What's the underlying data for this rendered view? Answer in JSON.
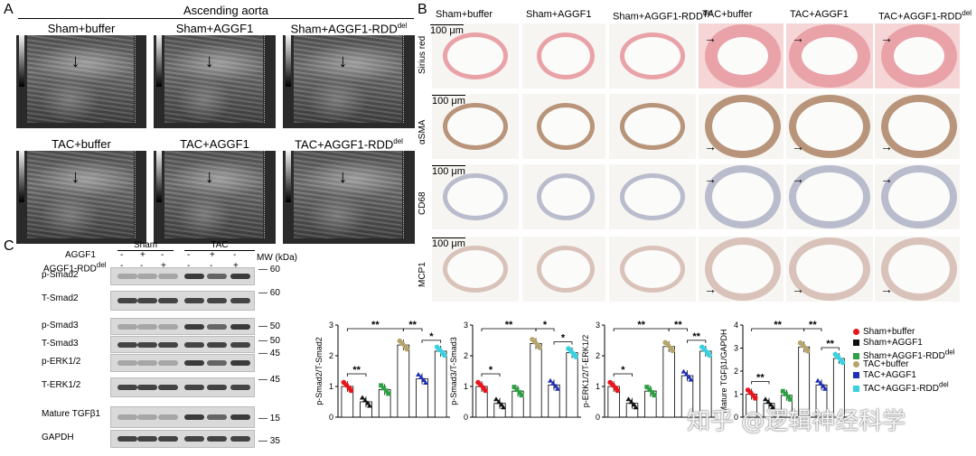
{
  "panel_a": {
    "label": "A",
    "header": "Ascending aorta",
    "images": [
      {
        "title": "Sham+buffer"
      },
      {
        "title": "Sham+AGGF1"
      },
      {
        "title": "Sham+AGGF1-RDD",
        "sup": "del"
      },
      {
        "title": "TAC+buffer"
      },
      {
        "title": "TAC+AGGF1"
      },
      {
        "title": "TAC+AGGF1-RDD",
        "sup": "del"
      }
    ]
  },
  "panel_b": {
    "label": "B",
    "columns": [
      {
        "title": "Sham+buffer"
      },
      {
        "title": "Sham+AGGF1"
      },
      {
        "title": "Sham+AGGF1-RDD",
        "sup": "del"
      },
      {
        "title": "TAC+buffer"
      },
      {
        "title": "TAC+AGGF1"
      },
      {
        "title": "TAC+AGGF1-RDD",
        "sup": "del"
      }
    ],
    "rows": [
      "Sirius red",
      "αSMA",
      "CD68",
      "MCP1"
    ],
    "scale": "100 μm",
    "colors": {
      "Sirius red": "#e9a2a8",
      "αSMA": "#b8957a",
      "CD68": "#b9bccc",
      "MCP1": "#d8c2b9"
    }
  },
  "panel_c": {
    "label": "C",
    "groups": [
      "Sham",
      "TAC"
    ],
    "row_labels": [
      "AGGF1",
      "AGGF1-RDD"
    ],
    "row_sup": "del",
    "row1": [
      "-",
      "+",
      "-",
      "-",
      "+",
      "-"
    ],
    "row2": [
      "-",
      "-",
      "+",
      "-",
      "-",
      "+"
    ],
    "mw_header": "MW (kDa)",
    "blots": [
      {
        "name": "p-Smad2",
        "mw": "60"
      },
      {
        "name": "T-Smad2",
        "mw": "60"
      },
      {
        "name": "p-Smad3",
        "mw": "50"
      },
      {
        "name": "T-Smad3",
        "mw": "50"
      },
      {
        "name": "p-ERK1/2",
        "mw": "45"
      },
      {
        "name": "T-ERK1/2",
        "mw": "45"
      },
      {
        "name": "Mature TGFβ1",
        "mw": "15"
      },
      {
        "name": "GAPDH",
        "mw": "35"
      }
    ]
  },
  "legend": {
    "items": [
      {
        "name": "Sham+buffer",
        "color": "#e8151b"
      },
      {
        "name": "Sham+AGGF1",
        "color": "#111111"
      },
      {
        "name": "Sham+AGGF1-RDD",
        "sup": "del",
        "color": "#2ea043"
      },
      {
        "name": "TAC+buffer",
        "color": "#b5a46b"
      },
      {
        "name": "TAC+AGGF1",
        "color": "#1f2fb5"
      },
      {
        "name": "TAC+AGGF1-RDD",
        "sup": "del",
        "color": "#39d1e0"
      }
    ]
  },
  "chart_data": [
    {
      "type": "bar",
      "ylabel": "p-Smad2/T-Smad2",
      "ylim": [
        0,
        3
      ],
      "yticks": [
        0,
        1,
        2,
        3
      ],
      "categories": [
        "Sham+buffer",
        "Sham+AGGF1",
        "Sham+AGGF1-RDDdel",
        "TAC+buffer",
        "TAC+AGGF1",
        "TAC+AGGF1-RDDdel"
      ],
      "values": [
        1.0,
        0.5,
        0.9,
        2.35,
        1.25,
        2.15
      ],
      "annotations": [
        "**",
        "**",
        "**",
        "*"
      ]
    },
    {
      "type": "bar",
      "ylabel": "p-Smad3/T-Smad3",
      "ylim": [
        0,
        3
      ],
      "yticks": [
        0,
        1,
        2,
        3
      ],
      "categories": [
        "Sham+buffer",
        "Sham+AGGF1",
        "Sham+AGGF1-RDDdel",
        "TAC+buffer",
        "TAC+AGGF1",
        "TAC+AGGF1-RDDdel"
      ],
      "values": [
        1.0,
        0.45,
        0.85,
        2.4,
        1.05,
        2.1
      ],
      "annotations": [
        "*",
        "**",
        "*",
        "*"
      ]
    },
    {
      "type": "bar",
      "ylabel": "p-ERK1/2/T-ERK1/2",
      "ylim": [
        0,
        3
      ],
      "yticks": [
        0,
        1,
        2,
        3
      ],
      "categories": [
        "Sham+buffer",
        "Sham+AGGF1",
        "Sham+AGGF1-RDDdel",
        "TAC+buffer",
        "TAC+AGGF1",
        "TAC+AGGF1-RDDdel"
      ],
      "values": [
        1.0,
        0.45,
        0.85,
        2.3,
        1.35,
        2.15
      ],
      "annotations": [
        "*",
        "**",
        "**",
        "**"
      ]
    },
    {
      "type": "bar",
      "ylabel": "Mature TGFβ1/GAPDH",
      "ylim": [
        0,
        4
      ],
      "yticks": [
        0,
        1,
        2,
        3,
        4
      ],
      "categories": [
        "Sham+buffer",
        "Sham+AGGF1",
        "Sham+AGGF1-RDDdel",
        "TAC+buffer",
        "TAC+AGGF1",
        "TAC+AGGF1-RDDdel"
      ],
      "values": [
        1.0,
        0.6,
        0.95,
        3.05,
        1.4,
        2.55
      ],
      "annotations": [
        "**",
        "**",
        "**",
        "**"
      ]
    }
  ],
  "watermark": "知乎 @逻辑神经科学"
}
